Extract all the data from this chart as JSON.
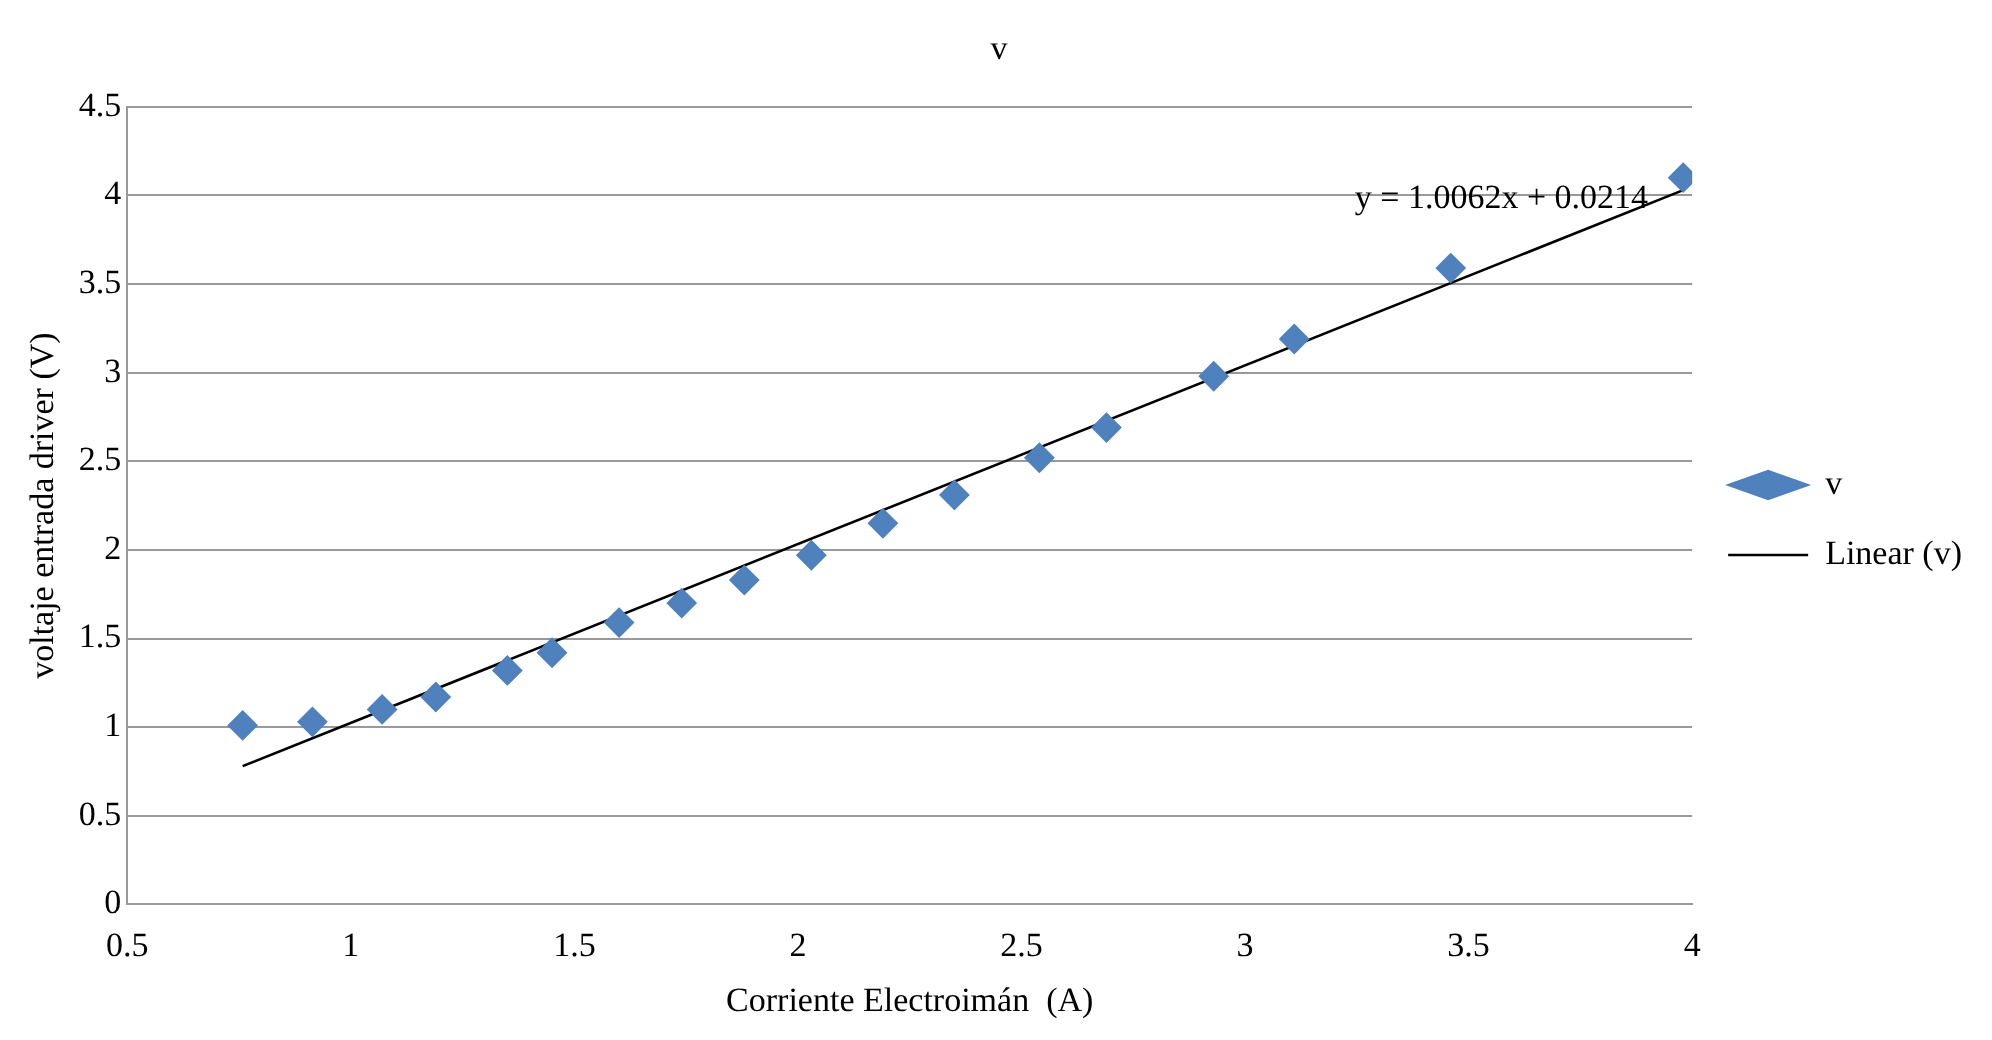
{
  "chart_data": {
    "type": "scatter",
    "title": "v",
    "xlabel": "Corriente Electroimán  (A)",
    "ylabel": "voltaje entrada driver (V)",
    "xlim": [
      0.5,
      4
    ],
    "xticks": [
      0.5,
      1,
      1.5,
      2,
      2.5,
      3,
      3.5,
      4
    ],
    "ylim": [
      0,
      4.5
    ],
    "yticks": [
      0,
      0.5,
      1,
      1.5,
      2,
      2.5,
      3,
      3.5,
      4,
      4.5
    ],
    "grid": "y",
    "legend": "right",
    "annotations": [
      "y = 1.0062x + 0.0214"
    ],
    "series": [
      {
        "name": "v",
        "marker": "diamond",
        "color": "#4f81bd",
        "x": [
          0.758,
          0.914,
          1.07,
          1.19,
          1.35,
          1.45,
          1.6,
          1.74,
          1.88,
          2.03,
          2.19,
          2.35,
          2.54,
          2.69,
          2.93,
          3.11,
          3.46,
          3.98
        ],
        "values": [
          1.01,
          1.03,
          1.1,
          1.17,
          1.32,
          1.42,
          1.59,
          1.7,
          1.83,
          1.97,
          2.15,
          2.31,
          2.52,
          2.69,
          2.98,
          3.19,
          3.59,
          4.1
        ]
      },
      {
        "name": "Linear (v)",
        "type": "line",
        "marker": "none",
        "line_style": "solid",
        "color": "#000000",
        "x": [
          0.758,
          3.98
        ],
        "values": [
          0.78,
          4.03
        ]
      }
    ]
  }
}
